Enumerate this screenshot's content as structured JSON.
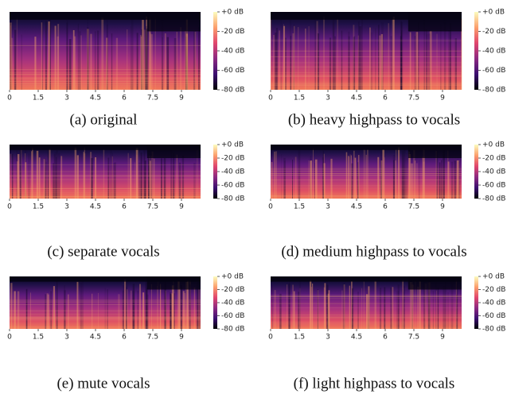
{
  "figure": {
    "xlim": [
      0,
      10
    ],
    "xticks": [
      0,
      1.5,
      3,
      4.5,
      6,
      7.5,
      9
    ],
    "clim": [
      -80,
      0
    ],
    "colorbar_ticks": [
      {
        "value": 0,
        "label": "+0 dB"
      },
      {
        "value": -20,
        "label": "-20 dB"
      },
      {
        "value": -40,
        "label": "-40 dB"
      },
      {
        "value": -60,
        "label": "-60 dB"
      },
      {
        "value": -80,
        "label": "-80 dB"
      }
    ],
    "panels": [
      {
        "caption": "(a) original"
      },
      {
        "caption": "(b) heavy highpass to vocals"
      },
      {
        "caption": "(c) separate vocals"
      },
      {
        "caption": "(d) medium highpass to vocals"
      },
      {
        "caption": "(e) mute vocals"
      },
      {
        "caption": "(f) light highpass to vocals"
      }
    ]
  }
}
